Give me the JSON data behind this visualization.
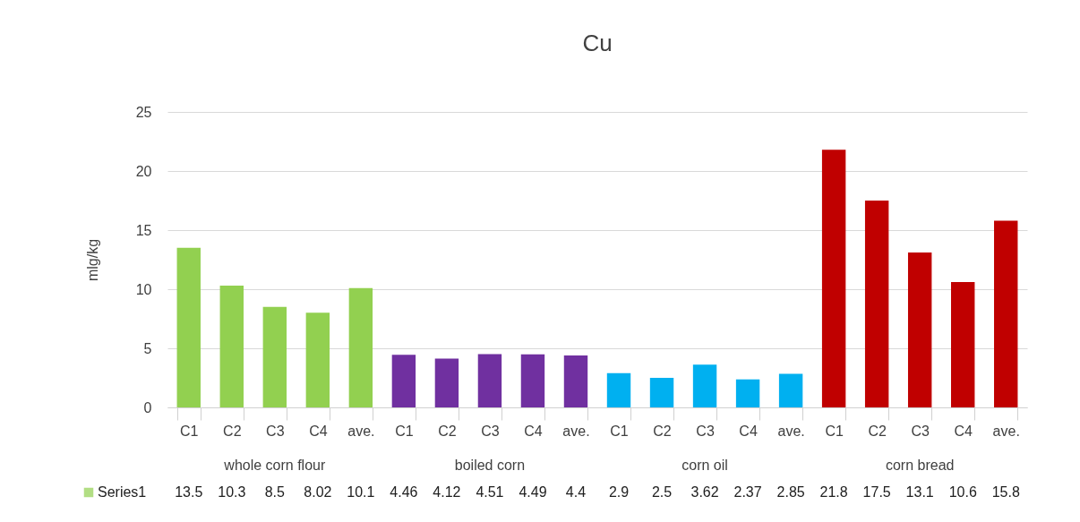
{
  "chart_data": {
    "type": "bar",
    "title": "Cu",
    "ylabel": "mlg/kg",
    "categories": [
      "C1",
      "C2",
      "C3",
      "C4",
      "ave.",
      "C1",
      "C2",
      "C3",
      "C4",
      "ave.",
      "C1",
      "C2",
      "C3",
      "C4",
      "ave.",
      "C1",
      "C2",
      "C3",
      "C4",
      "ave."
    ],
    "annotations": [
      "whole corn flour",
      "boiled corn",
      "corn oil",
      "corn bread"
    ],
    "series": [
      {
        "name": "Series1",
        "color": "#92d050",
        "values": [
          13.5,
          10.3,
          8.5,
          8.02,
          10.1,
          4.46,
          4.12,
          4.51,
          4.49,
          4.4,
          2.9,
          2.5,
          3.62,
          2.37,
          2.85,
          21.8,
          17.5,
          13.1,
          10.6,
          15.8
        ],
        "colors": [
          "#92d050",
          "#92d050",
          "#92d050",
          "#92d050",
          "#92d050",
          "#7030a0",
          "#7030a0",
          "#7030a0",
          "#7030a0",
          "#7030a0",
          "#00b0f0",
          "#00b0f0",
          "#00b0f0",
          "#00b0f0",
          "#00b0f0",
          "#c00000",
          "#c00000",
          "#c00000",
          "#c00000",
          "#c00000"
        ]
      }
    ],
    "ylim": [
      0,
      25
    ],
    "yticks": [
      0,
      5,
      10,
      15,
      20,
      25
    ],
    "grid": "y",
    "data_labels": true,
    "legend": "bottom"
  }
}
